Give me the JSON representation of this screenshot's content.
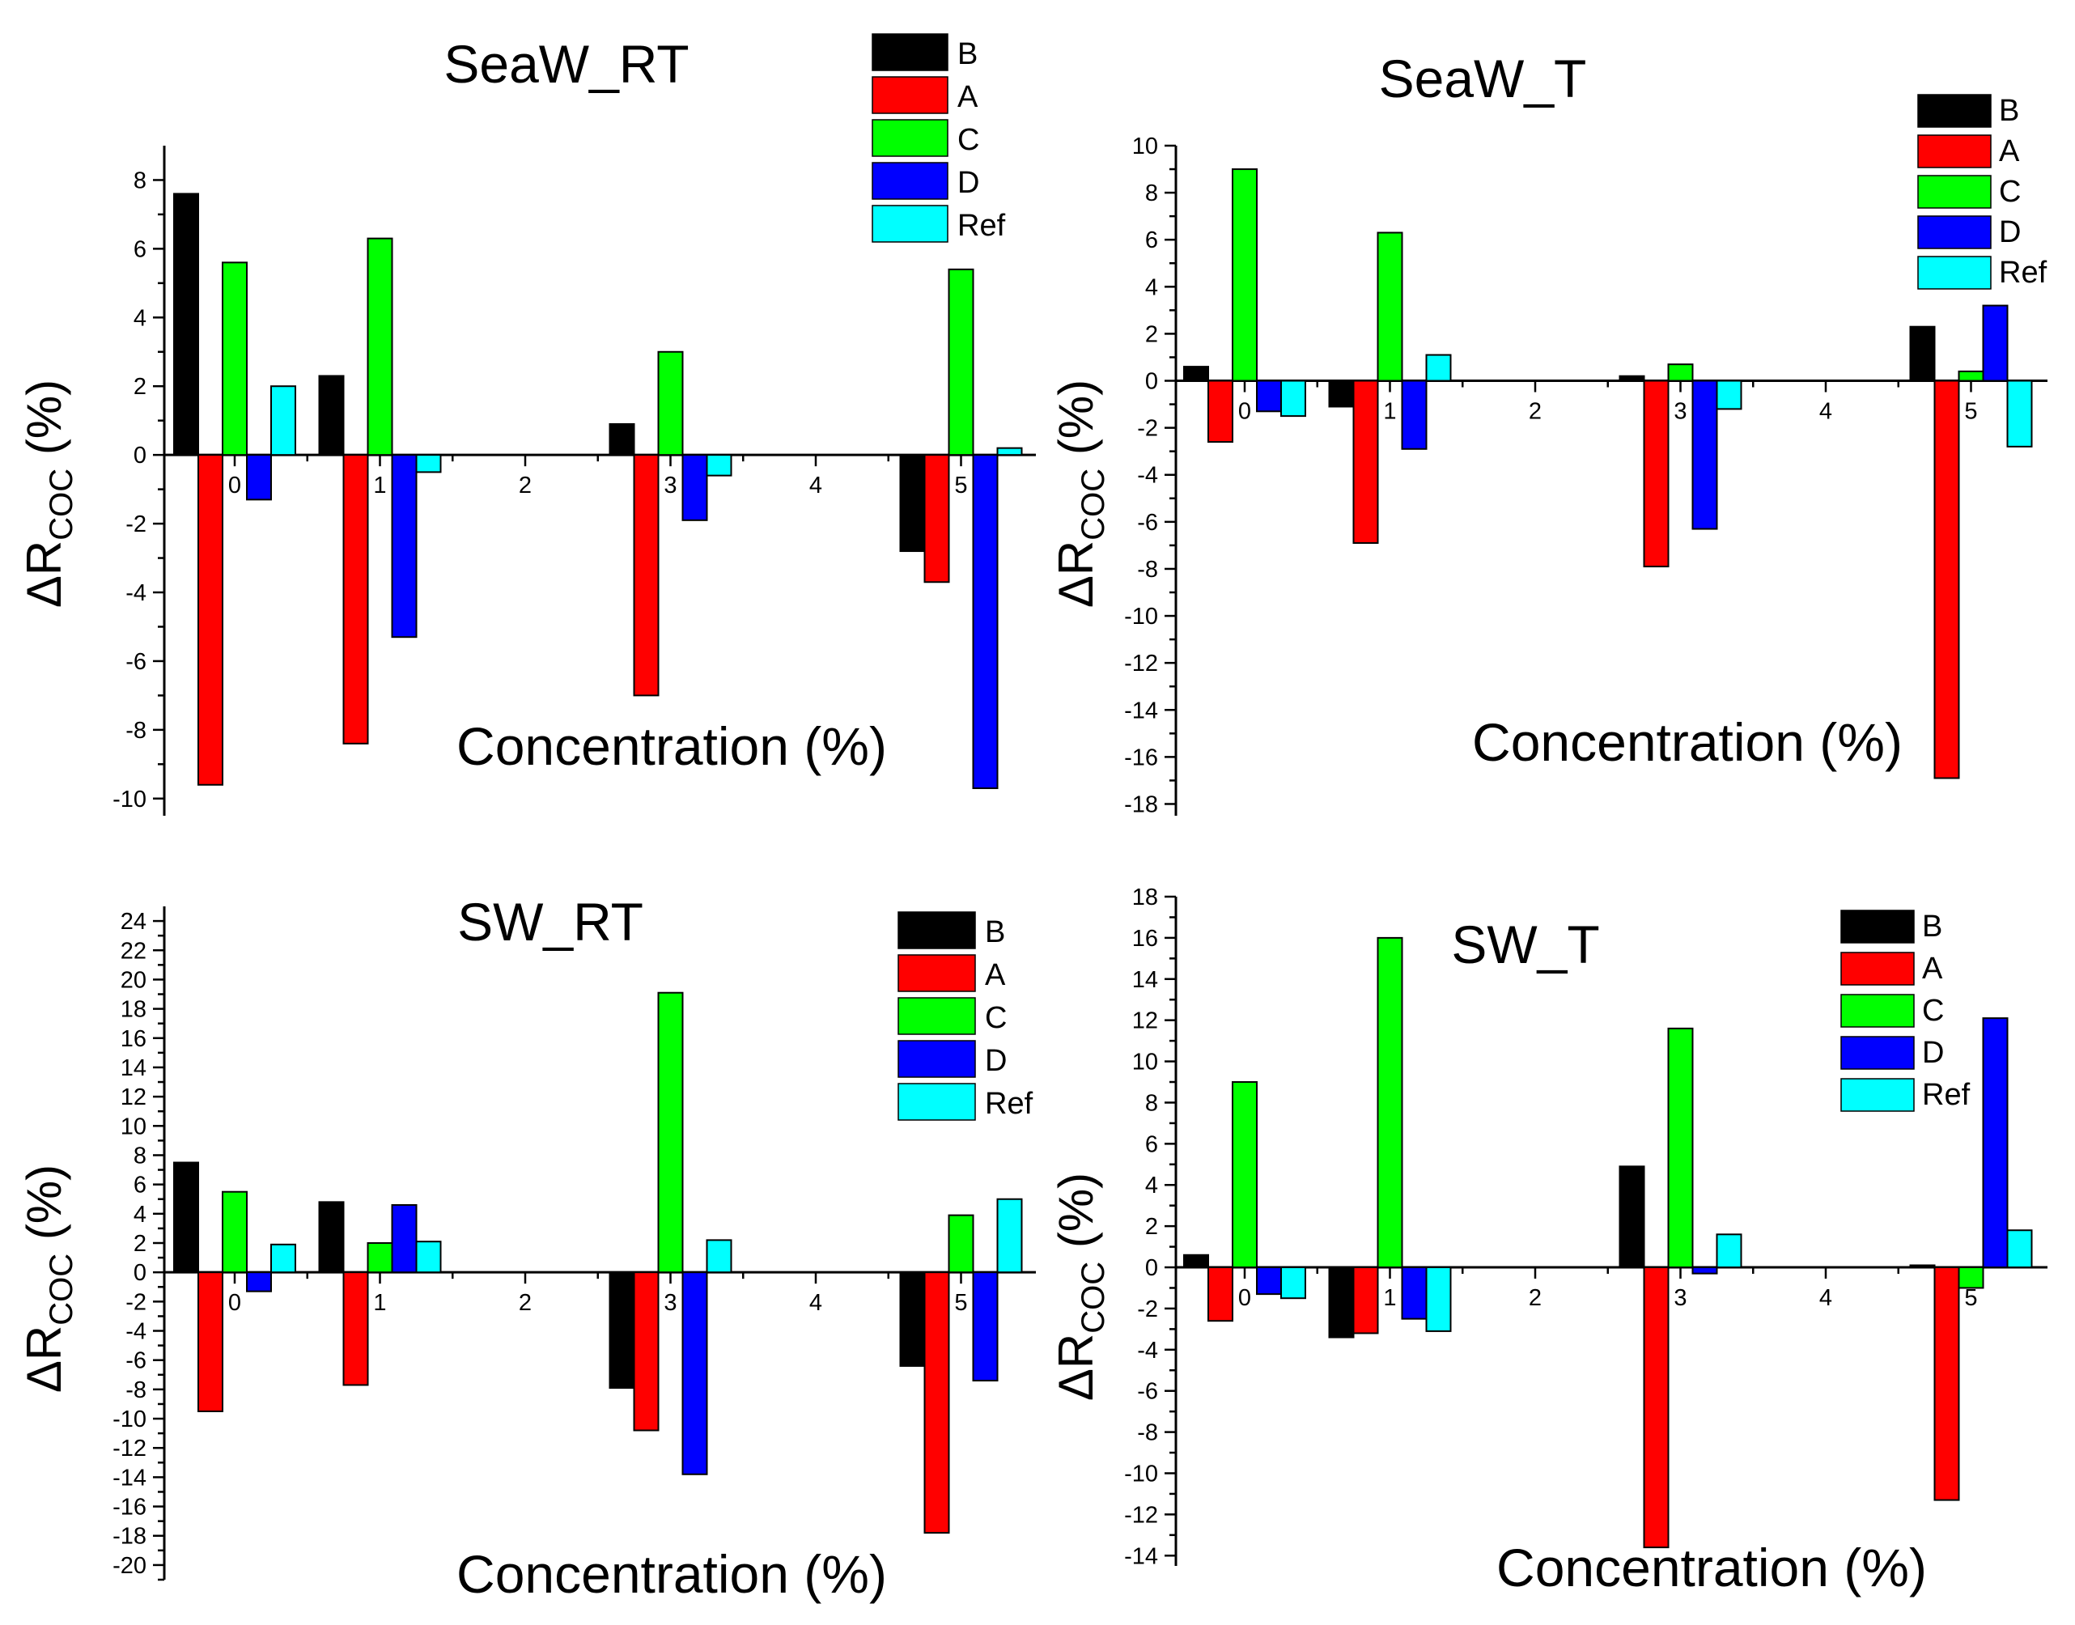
{
  "colors": {
    "B": "#000000",
    "A": "#ff0000",
    "C": "#00ff00",
    "D": "#0000ff",
    "Ref": "#00ffff"
  },
  "chart_data": [
    {
      "type": "bar",
      "title": "SeaW_RT",
      "xlabel": "Concentration (%)",
      "ylabel_main": "ΔR",
      "ylabel_sub": "COC",
      "ylabel_unit": "(%)",
      "ylim": [
        -10.5,
        9
      ],
      "yticks": [
        8,
        6,
        4,
        2,
        0,
        -2,
        -4,
        -6,
        -8,
        -10
      ],
      "categories": [
        "0",
        "1",
        "2",
        "3",
        "4",
        "5"
      ],
      "legend": [
        "B",
        "A",
        "C",
        "D",
        "Ref"
      ],
      "series": [
        {
          "name": "B",
          "values": [
            7.6,
            2.3,
            null,
            0.9,
            null,
            -2.8
          ]
        },
        {
          "name": "A",
          "values": [
            -9.6,
            -8.4,
            null,
            -7.0,
            null,
            -3.7
          ]
        },
        {
          "name": "C",
          "values": [
            5.6,
            6.3,
            null,
            3.0,
            null,
            5.4
          ]
        },
        {
          "name": "D",
          "values": [
            -1.3,
            -5.3,
            null,
            -1.9,
            null,
            -9.7
          ]
        },
        {
          "name": "Ref",
          "values": [
            2.0,
            -0.5,
            null,
            -0.6,
            null,
            0.2
          ]
        }
      ]
    },
    {
      "type": "bar",
      "title": "SeaW_T",
      "xlabel": "Concentration (%)",
      "ylabel_main": "ΔR",
      "ylabel_sub": "COC",
      "ylabel_unit": "(%)",
      "ylim": [
        -18.5,
        10
      ],
      "yticks": [
        10,
        8,
        6,
        4,
        2,
        0,
        -2,
        -4,
        -6,
        -8,
        -10,
        -12,
        -14,
        -16,
        -18
      ],
      "categories": [
        "0",
        "1",
        "2",
        "3",
        "4",
        "5"
      ],
      "legend": [
        "B",
        "A",
        "C",
        "D",
        "Ref"
      ],
      "series": [
        {
          "name": "B",
          "values": [
            0.6,
            -1.1,
            null,
            0.2,
            null,
            2.3
          ]
        },
        {
          "name": "A",
          "values": [
            -2.6,
            -6.9,
            null,
            -7.9,
            null,
            -16.9
          ]
        },
        {
          "name": "C",
          "values": [
            9.0,
            6.3,
            null,
            0.7,
            null,
            0.4
          ]
        },
        {
          "name": "D",
          "values": [
            -1.3,
            -2.9,
            null,
            -6.3,
            null,
            3.2
          ]
        },
        {
          "name": "Ref",
          "values": [
            -1.5,
            1.1,
            null,
            -1.2,
            null,
            -2.8
          ]
        }
      ]
    },
    {
      "type": "bar",
      "title": "SW_RT",
      "xlabel": "Concentration (%)",
      "ylabel_main": "ΔR",
      "ylabel_sub": "COC",
      "ylabel_unit": "(%)",
      "ylim": [
        -21,
        25
      ],
      "yticks": [
        24,
        22,
        20,
        18,
        16,
        14,
        12,
        10,
        8,
        6,
        4,
        2,
        0,
        -2,
        -4,
        -6,
        -8,
        -10,
        -12,
        -14,
        -16,
        -18,
        -20
      ],
      "categories": [
        "0",
        "1",
        "2",
        "3",
        "4",
        "5"
      ],
      "legend": [
        "B",
        "A",
        "C",
        "D",
        "Ref"
      ],
      "series": [
        {
          "name": "B",
          "values": [
            7.5,
            4.8,
            null,
            -7.9,
            null,
            -6.4
          ]
        },
        {
          "name": "A",
          "values": [
            -9.5,
            -7.7,
            null,
            -10.8,
            null,
            -17.8
          ]
        },
        {
          "name": "C",
          "values": [
            5.5,
            2.0,
            null,
            19.1,
            null,
            3.9
          ]
        },
        {
          "name": "D",
          "values": [
            -1.3,
            4.6,
            null,
            -13.8,
            null,
            -7.4
          ]
        },
        {
          "name": "Ref",
          "values": [
            1.9,
            2.1,
            null,
            2.2,
            null,
            5.0
          ]
        }
      ]
    },
    {
      "type": "bar",
      "title": "SW_T",
      "xlabel": "Concentration (%)",
      "ylabel_main": "ΔR",
      "ylabel_sub": "COC",
      "ylabel_unit": "(%)",
      "ylim": [
        -14.5,
        18
      ],
      "yticks": [
        18,
        16,
        14,
        12,
        10,
        8,
        6,
        4,
        2,
        0,
        -2,
        -4,
        -6,
        -8,
        -10,
        -12,
        -14
      ],
      "categories": [
        "0",
        "1",
        "2",
        "3",
        "4",
        "5"
      ],
      "legend": [
        "B",
        "A",
        "C",
        "D",
        "Ref"
      ],
      "series": [
        {
          "name": "B",
          "values": [
            0.6,
            -3.4,
            null,
            4.9,
            null,
            0.1
          ]
        },
        {
          "name": "A",
          "values": [
            -2.6,
            -3.2,
            null,
            -13.6,
            null,
            -11.3
          ]
        },
        {
          "name": "C",
          "values": [
            9.0,
            16.0,
            null,
            11.6,
            null,
            -1.0
          ]
        },
        {
          "name": "D",
          "values": [
            -1.3,
            -2.5,
            null,
            -0.3,
            null,
            12.1
          ]
        },
        {
          "name": "Ref",
          "values": [
            -1.5,
            -3.1,
            null,
            1.6,
            null,
            1.8
          ]
        }
      ]
    }
  ]
}
